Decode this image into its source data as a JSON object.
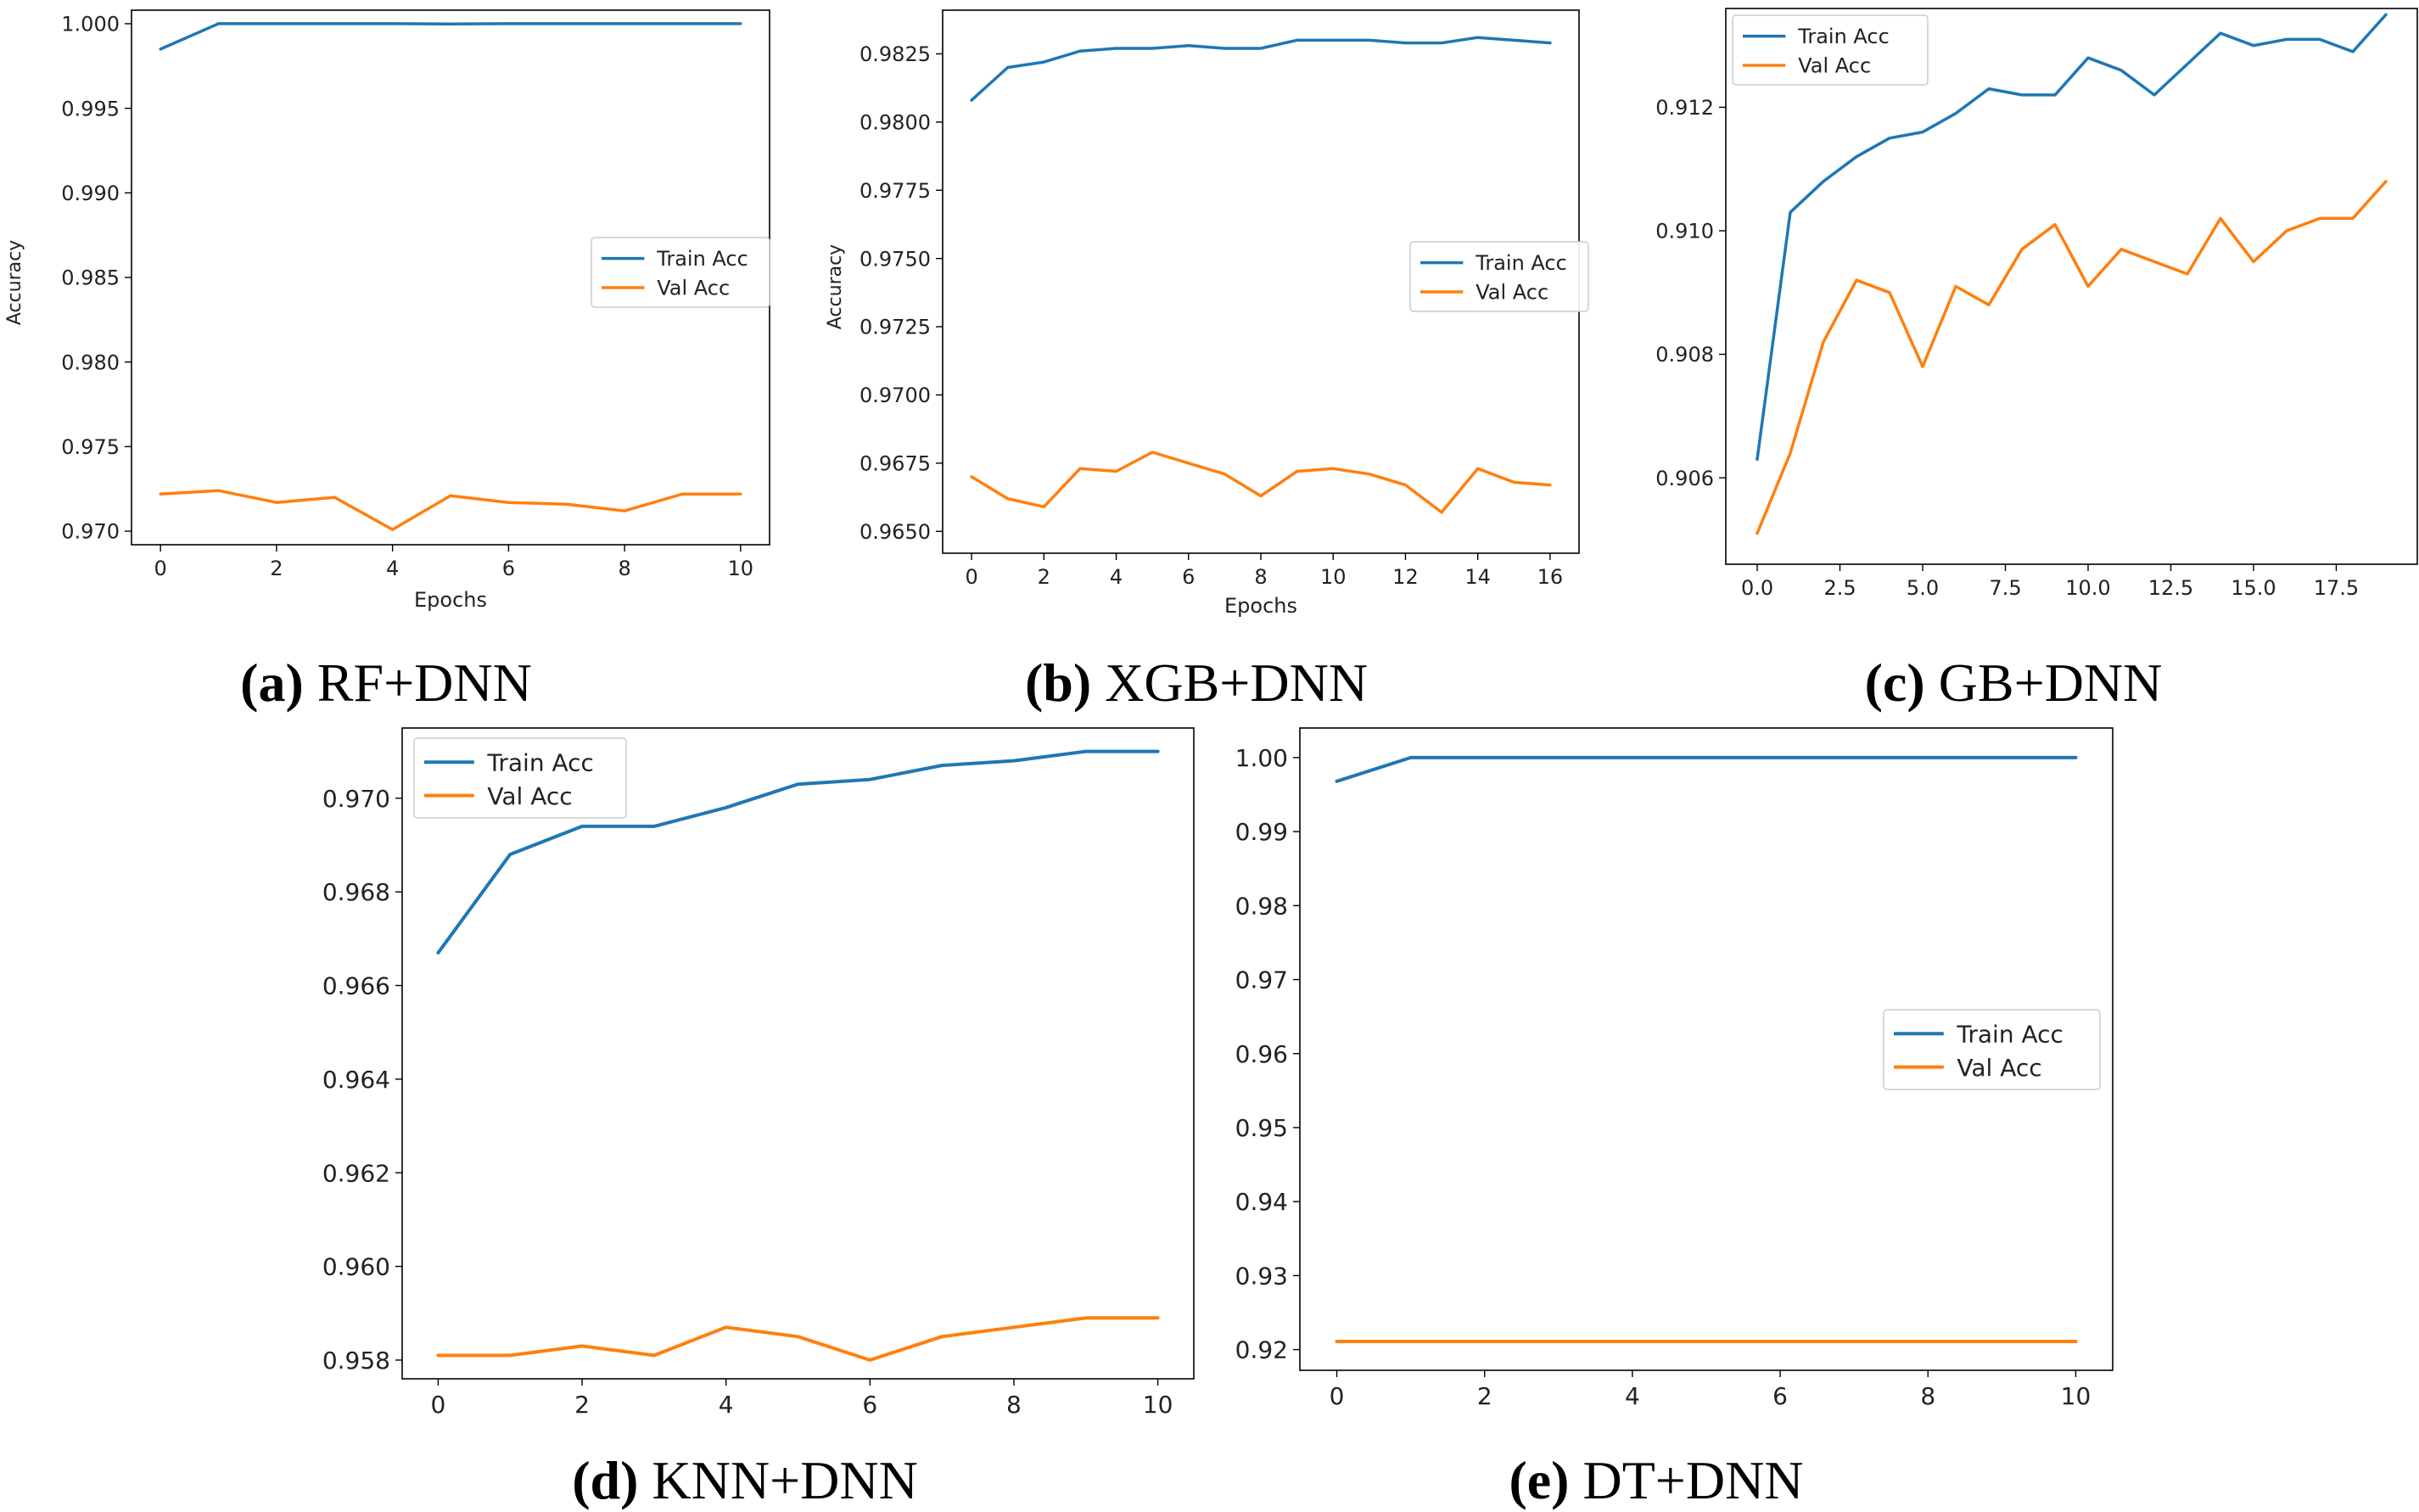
{
  "colors": {
    "train": "#1f77b4",
    "val": "#ff7f0e",
    "axis": "#000000"
  },
  "chart_data": [
    {
      "id": "a",
      "type": "line",
      "caption_letter": "(a)",
      "caption_title": "RF+DNN",
      "xlabel": "Epochs",
      "ylabel": "Accuracy",
      "xlim": [
        -0.5,
        10.5
      ],
      "ylim": [
        0.9692,
        1.0008
      ],
      "xticks": [
        0,
        2,
        4,
        6,
        8,
        10
      ],
      "xtick_labels": [
        "0",
        "2",
        "4",
        "6",
        "8",
        "10"
      ],
      "yticks": [
        0.97,
        0.975,
        0.98,
        0.985,
        0.99,
        0.995,
        1.0
      ],
      "ytick_labels": [
        "0.970",
        "0.975",
        "0.980",
        "0.985",
        "0.990",
        "0.995",
        "1.000"
      ],
      "legend_position": "center-right",
      "x": [
        0,
        1,
        2,
        3,
        4,
        5,
        6,
        7,
        8,
        9,
        10
      ],
      "series": [
        {
          "name": "Train Acc",
          "color": "#1f77b4",
          "values": [
            0.9985,
            1.0,
            1.0,
            1.0,
            1.0,
            0.99998,
            1.0,
            1.0,
            1.0,
            1.0,
            1.0
          ]
        },
        {
          "name": "Val Acc",
          "color": "#ff7f0e",
          "values": [
            0.9722,
            0.9724,
            0.9717,
            0.972,
            0.9701,
            0.9721,
            0.9717,
            0.9716,
            0.9712,
            0.9722,
            0.9722
          ]
        }
      ]
    },
    {
      "id": "b",
      "type": "line",
      "caption_letter": "(b)",
      "caption_title": "XGB+DNN",
      "xlabel": "Epochs",
      "ylabel": "Accuracy",
      "xlim": [
        -0.8,
        16.8
      ],
      "ylim": [
        0.9642,
        0.9841
      ],
      "xticks": [
        0,
        2,
        4,
        6,
        8,
        10,
        12,
        14,
        16
      ],
      "xtick_labels": [
        "0",
        "2",
        "4",
        "6",
        "8",
        "10",
        "12",
        "14",
        "16"
      ],
      "yticks": [
        0.965,
        0.9675,
        0.97,
        0.9725,
        0.975,
        0.9775,
        0.98,
        0.9825
      ],
      "ytick_labels": [
        "0.9650",
        "0.9675",
        "0.9700",
        "0.9725",
        "0.9750",
        "0.9775",
        "0.9800",
        "0.9825"
      ],
      "legend_position": "center-right",
      "x": [
        0,
        1,
        2,
        3,
        4,
        5,
        6,
        7,
        8,
        9,
        10,
        11,
        12,
        13,
        14,
        15,
        16
      ],
      "series": [
        {
          "name": "Train Acc",
          "color": "#1f77b4",
          "values": [
            0.9808,
            0.982,
            0.9822,
            0.9826,
            0.9827,
            0.9827,
            0.9828,
            0.9827,
            0.9827,
            0.983,
            0.983,
            0.983,
            0.9829,
            0.9829,
            0.9831,
            0.983,
            0.9829
          ]
        },
        {
          "name": "Val Acc",
          "color": "#ff7f0e",
          "values": [
            0.967,
            0.9662,
            0.9659,
            0.9673,
            0.9672,
            0.9679,
            0.9675,
            0.9671,
            0.9663,
            0.9672,
            0.9673,
            0.9671,
            0.9667,
            0.9657,
            0.9673,
            0.9668,
            0.9667
          ]
        }
      ]
    },
    {
      "id": "c",
      "type": "line",
      "caption_letter": "(c)",
      "caption_title": "GB+DNN",
      "xlabel": "",
      "ylabel": "",
      "xlim": [
        -0.95,
        19.95
      ],
      "ylim": [
        0.9046,
        0.9136
      ],
      "xticks": [
        0,
        2.5,
        5,
        7.5,
        10,
        12.5,
        15,
        17.5
      ],
      "xtick_labels": [
        "0.0",
        "2.5",
        "5.0",
        "7.5",
        "10.0",
        "12.5",
        "15.0",
        "17.5"
      ],
      "yticks": [
        0.906,
        0.908,
        0.91,
        0.912
      ],
      "ytick_labels": [
        "0.906",
        "0.908",
        "0.910",
        "0.912"
      ],
      "legend_position": "top-left",
      "x": [
        0,
        1,
        2,
        3,
        4,
        5,
        6,
        7,
        8,
        9,
        10,
        11,
        12,
        13,
        14,
        15,
        16,
        17,
        18,
        19
      ],
      "series": [
        {
          "name": "Train Acc",
          "color": "#1f77b4",
          "values": [
            0.9063,
            0.9103,
            0.9108,
            0.9112,
            0.9115,
            0.9116,
            0.9119,
            0.9123,
            0.9122,
            0.9122,
            0.9128,
            0.9126,
            0.9122,
            0.9127,
            0.9132,
            0.913,
            0.9131,
            0.9131,
            0.9129,
            0.9135
          ]
        },
        {
          "name": "Val Acc",
          "color": "#ff7f0e",
          "values": [
            0.9051,
            0.9064,
            0.9082,
            0.9092,
            0.909,
            0.9078,
            0.9091,
            0.9088,
            0.9097,
            0.9101,
            0.9091,
            0.9097,
            0.9095,
            0.9093,
            0.9102,
            0.9095,
            0.91,
            0.9102,
            0.9102,
            0.9108
          ]
        }
      ]
    },
    {
      "id": "d",
      "type": "line",
      "caption_letter": "(d)",
      "caption_title": "KNN+DNN",
      "xlabel": "",
      "ylabel": "",
      "xlim": [
        -0.5,
        10.5
      ],
      "ylim": [
        0.9576,
        0.9715
      ],
      "xticks": [
        0,
        2,
        4,
        6,
        8,
        10
      ],
      "xtick_labels": [
        "0",
        "2",
        "4",
        "6",
        "8",
        "10"
      ],
      "yticks": [
        0.958,
        0.96,
        0.962,
        0.964,
        0.966,
        0.968,
        0.97
      ],
      "ytick_labels": [
        "0.958",
        "0.960",
        "0.962",
        "0.964",
        "0.966",
        "0.968",
        "0.970"
      ],
      "legend_position": "top-left",
      "x": [
        0,
        1,
        2,
        3,
        4,
        5,
        6,
        7,
        8,
        9,
        10
      ],
      "series": [
        {
          "name": "Train Acc",
          "color": "#1f77b4",
          "values": [
            0.9667,
            0.9688,
            0.9694,
            0.9694,
            0.9698,
            0.9703,
            0.9704,
            0.9707,
            0.9708,
            0.971,
            0.971
          ]
        },
        {
          "name": "Val Acc",
          "color": "#ff7f0e",
          "values": [
            0.9581,
            0.9581,
            0.9583,
            0.9581,
            0.9587,
            0.9585,
            0.958,
            0.9585,
            0.9587,
            0.9589,
            0.9589
          ]
        }
      ]
    },
    {
      "id": "e",
      "type": "line",
      "caption_letter": "(e)",
      "caption_title": "DT+DNN",
      "xlabel": "",
      "ylabel": "",
      "xlim": [
        -0.5,
        10.5
      ],
      "ylim": [
        0.9172,
        1.004
      ],
      "xticks": [
        0,
        2,
        4,
        6,
        8,
        10
      ],
      "xtick_labels": [
        "0",
        "2",
        "4",
        "6",
        "8",
        "10"
      ],
      "yticks": [
        0.92,
        0.93,
        0.94,
        0.95,
        0.96,
        0.97,
        0.98,
        0.99,
        1.0
      ],
      "ytick_labels": [
        "0.92",
        "0.93",
        "0.94",
        "0.95",
        "0.96",
        "0.97",
        "0.98",
        "0.99",
        "1.00"
      ],
      "legend_position": "center-right",
      "x": [
        0,
        1,
        2,
        3,
        4,
        5,
        6,
        7,
        8,
        9,
        10
      ],
      "series": [
        {
          "name": "Train Acc",
          "color": "#1f77b4",
          "values": [
            0.9968,
            1.0,
            1.0,
            1.0,
            1.0,
            1.0,
            1.0,
            1.0,
            1.0,
            1.0,
            1.0
          ]
        },
        {
          "name": "Val Acc",
          "color": "#ff7f0e",
          "values": [
            0.9211,
            0.9211,
            0.9211,
            0.9211,
            0.9211,
            0.9211,
            0.9211,
            0.9211,
            0.9211,
            0.9211,
            0.9211
          ]
        }
      ]
    }
  ]
}
